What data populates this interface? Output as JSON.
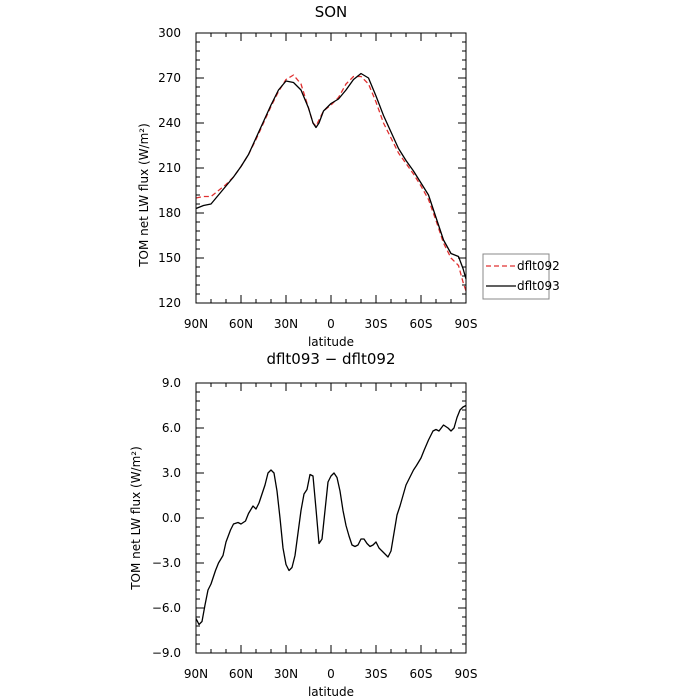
{
  "chart_data": [
    {
      "type": "line",
      "title": "SON",
      "xlabel": "latitude",
      "ylabel": "TOM net LW flux (W/m²)",
      "xlim": [
        90,
        -90
      ],
      "ylim": [
        120,
        300
      ],
      "xticks": [
        90,
        60,
        30,
        0,
        -30,
        -60,
        -90
      ],
      "xtick_labels": [
        "90N",
        "60N",
        "30N",
        "0",
        "30S",
        "60S",
        "90S"
      ],
      "yticks": [
        120,
        150,
        180,
        210,
        240,
        270,
        300
      ],
      "ytick_labels": [
        "120",
        "150",
        "180",
        "210",
        "240",
        "270",
        "300"
      ],
      "legend": "right",
      "series": [
        {
          "name": "dflt092",
          "color": "#e03030",
          "dash": "dashed",
          "x": [
            90,
            85,
            80,
            75,
            70,
            65,
            60,
            55,
            50,
            45,
            40,
            35,
            30,
            25,
            20,
            15,
            12,
            10,
            8,
            5,
            0,
            -5,
            -10,
            -15,
            -20,
            -25,
            -30,
            -35,
            -40,
            -45,
            -50,
            -55,
            -60,
            -65,
            -70,
            -75,
            -80,
            -85,
            -88,
            -90
          ],
          "y": [
            190,
            191,
            191,
            195,
            199,
            204,
            211,
            219,
            229,
            240,
            251,
            261,
            269,
            272,
            266,
            250,
            240,
            238,
            242,
            248,
            252,
            257,
            266,
            271,
            271,
            266,
            254,
            240,
            230,
            220,
            213,
            206,
            198,
            189,
            175,
            160,
            150,
            145,
            134,
            128
          ]
        },
        {
          "name": "dflt093",
          "color": "#000000",
          "dash": "solid",
          "x": [
            90,
            85,
            80,
            75,
            70,
            65,
            60,
            55,
            50,
            45,
            40,
            35,
            30,
            25,
            20,
            15,
            12,
            10,
            8,
            5,
            0,
            -5,
            -10,
            -15,
            -20,
            -25,
            -30,
            -35,
            -40,
            -45,
            -50,
            -55,
            -60,
            -65,
            -70,
            -75,
            -80,
            -85,
            -88,
            -90
          ],
          "y": [
            183,
            185,
            186,
            192,
            198,
            204,
            211,
            219,
            230,
            241,
            252,
            262,
            268,
            267,
            262,
            250,
            240,
            237,
            240,
            248,
            253,
            256,
            262,
            269,
            273,
            270,
            258,
            245,
            234,
            223,
            215,
            208,
            200,
            192,
            177,
            162,
            153,
            151,
            143,
            136
          ]
        }
      ]
    },
    {
      "type": "line",
      "title": "dflt093 − dflt092",
      "xlabel": "latitude",
      "ylabel": "TOM net LW flux (W/m²)",
      "xlim": [
        90,
        -90
      ],
      "ylim": [
        -9,
        9
      ],
      "xticks": [
        90,
        60,
        30,
        0,
        -30,
        -60,
        -90
      ],
      "xtick_labels": [
        "90N",
        "60N",
        "30N",
        "0",
        "30S",
        "60S",
        "90S"
      ],
      "yticks": [
        -9,
        -6,
        -3,
        0,
        3,
        6,
        9
      ],
      "ytick_labels": [
        "−9.0",
        "−6.0",
        "−3.0",
        "0.0",
        "3.0",
        "6.0",
        "9.0"
      ],
      "series": [
        {
          "color": "#000000",
          "dash": "solid",
          "x": [
            90,
            88,
            86,
            84,
            82,
            80,
            77,
            75,
            72,
            70,
            67,
            65,
            62,
            60,
            57,
            55,
            52,
            50,
            48,
            46,
            44,
            42,
            40,
            38,
            36,
            34,
            32,
            30,
            28,
            26,
            24,
            22,
            20,
            18,
            16,
            14,
            12,
            10,
            8,
            6,
            4,
            2,
            0,
            -2,
            -4,
            -6,
            -8,
            -10,
            -12,
            -14,
            -16,
            -18,
            -20,
            -22,
            -24,
            -26,
            -28,
            -30,
            -32,
            -34,
            -36,
            -38,
            -40,
            -42,
            -44,
            -46,
            -48,
            -50,
            -52,
            -55,
            -57,
            -60,
            -62,
            -65,
            -68,
            -70,
            -72,
            -75,
            -78,
            -80,
            -82,
            -84,
            -86,
            -88,
            -90
          ],
          "y": [
            -6.7,
            -7.1,
            -6.9,
            -5.8,
            -4.8,
            -4.4,
            -3.5,
            -3.0,
            -2.5,
            -1.6,
            -0.8,
            -0.4,
            -0.3,
            -0.4,
            -0.2,
            0.3,
            0.8,
            0.6,
            1.0,
            1.6,
            2.2,
            3.0,
            3.2,
            3.0,
            1.8,
            0.0,
            -2.0,
            -3.1,
            -3.5,
            -3.3,
            -2.5,
            -1.0,
            0.5,
            1.6,
            1.9,
            2.9,
            2.8,
            0.6,
            -1.7,
            -1.4,
            0.5,
            2.4,
            2.8,
            3.0,
            2.7,
            1.8,
            0.5,
            -0.5,
            -1.2,
            -1.8,
            -1.9,
            -1.8,
            -1.4,
            -1.4,
            -1.7,
            -1.9,
            -1.8,
            -1.6,
            -2.0,
            -2.2,
            -2.4,
            -2.6,
            -2.2,
            -1.0,
            0.2,
            0.8,
            1.5,
            2.2,
            2.6,
            3.2,
            3.5,
            4.0,
            4.5,
            5.2,
            5.8,
            5.9,
            5.8,
            6.2,
            6.0,
            5.8,
            6.0,
            6.7,
            7.2,
            7.4,
            7.5
          ]
        }
      ]
    }
  ]
}
